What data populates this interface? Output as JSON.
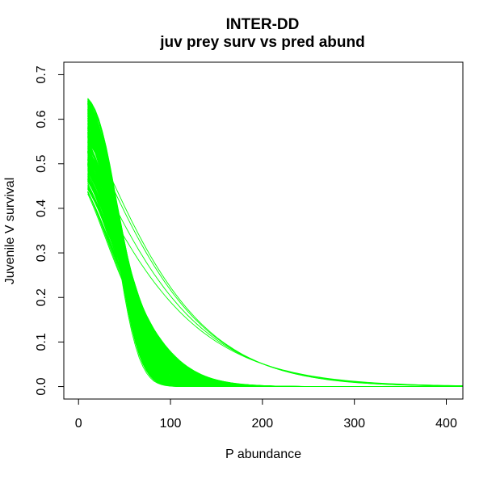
{
  "chart_data": {
    "type": "line",
    "title": "INTER-DD",
    "subtitle": "juv prey surv vs pred abund",
    "xlabel": "P abundance",
    "ylabel": "Juvenile V survival",
    "xlim": [
      -16,
      418
    ],
    "ylim": [
      -0.028,
      0.728
    ],
    "x_ticks": [
      0,
      100,
      200,
      300,
      400
    ],
    "y_ticks": [
      0.0,
      0.1,
      0.2,
      0.3,
      0.4,
      0.5,
      0.6,
      0.7
    ],
    "x_tick_labels": [
      "0",
      "100",
      "200",
      "300",
      "400"
    ],
    "y_tick_labels": [
      "0.0",
      "0.1",
      "0.2",
      "0.3",
      "0.4",
      "0.5",
      "0.6",
      "0.7"
    ],
    "grid": false,
    "legend": "none",
    "line_color": "#00ff00",
    "curve_model": "y = y0 * exp(-(x/s)^k), one curve per simulation run",
    "x_start": 10,
    "x_end": 418,
    "n_curves": 300,
    "y0_range": [
      0.46,
      0.655
    ],
    "envelope": {
      "x": [
        10,
        50,
        100,
        150,
        200,
        300,
        400
      ],
      "y_min": [
        0.46,
        0.25,
        0.02,
        0.002,
        0.0,
        0.0,
        0.0
      ],
      "y_max": [
        0.655,
        0.31,
        0.14,
        0.07,
        0.04,
        0.01,
        0.002
      ]
    }
  }
}
